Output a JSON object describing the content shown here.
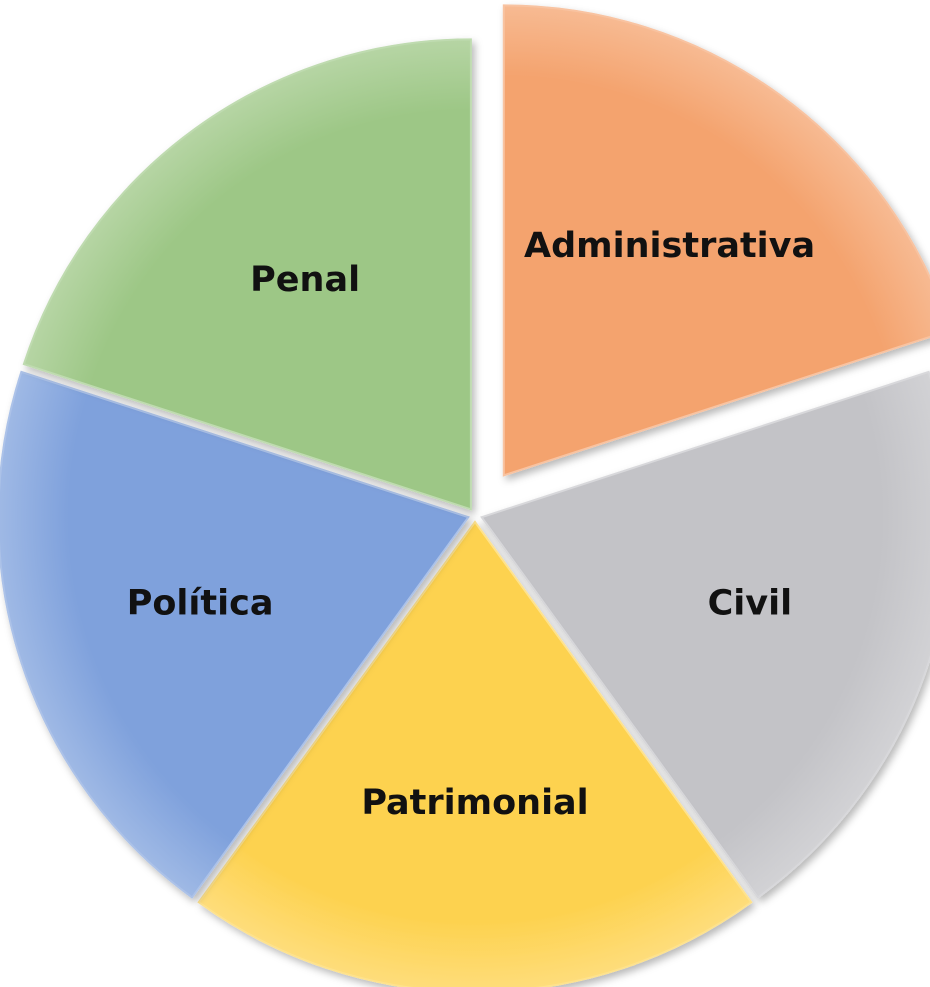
{
  "chart_data": {
    "type": "pie",
    "categories": [
      "Administrativa",
      "Civil",
      "Patrimonial",
      "Política",
      "Penal"
    ],
    "values": [
      20,
      20,
      20,
      20,
      20
    ],
    "exploded": [
      "Administrativa"
    ],
    "colors": [
      "#f4a36e",
      "#c3c3c7",
      "#fdd24f",
      "#7fa1dc",
      "#9dc786"
    ],
    "title": "",
    "legend": "none"
  }
}
